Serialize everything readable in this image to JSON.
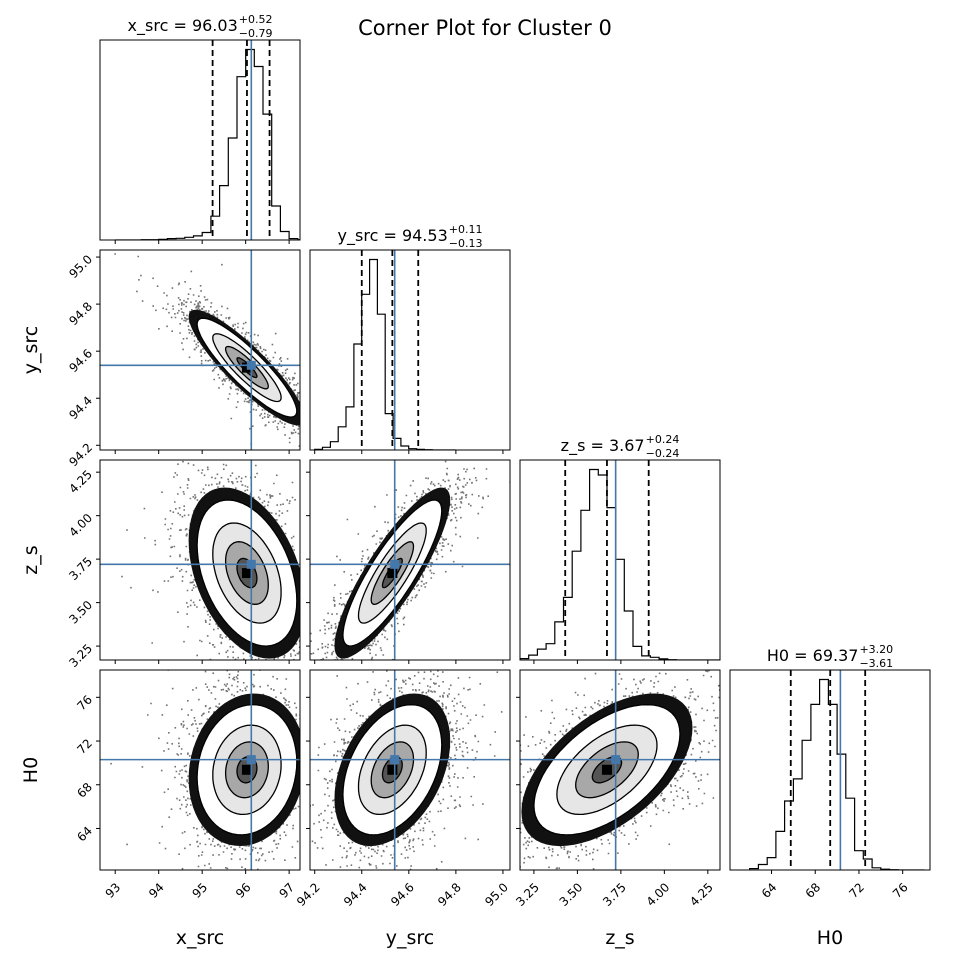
{
  "figure": {
    "title": "Corner Plot for Cluster 0"
  },
  "colors": {
    "truth": "#4477aa",
    "hist": "#000000",
    "background": "#ffffff"
  },
  "chart_data": {
    "type": "corner",
    "parameters": [
      {
        "name": "x_src",
        "label": "x_src",
        "range": [
          92.65,
          97.25
        ],
        "ticks": [
          93,
          94,
          95,
          96,
          97
        ],
        "tick_labels": [
          "93",
          "94",
          "95",
          "96",
          "97"
        ],
        "median": 96.03,
        "plus": "+0.52",
        "minus": "−0.79",
        "title_value": "96.03",
        "quantiles": [
          95.24,
          96.03,
          96.55
        ],
        "truth": 96.13,
        "hist": {
          "edges_start": 93.0,
          "bin_width": 0.2,
          "counts": [
            0,
            0,
            0,
            1,
            1,
            2,
            4,
            5,
            8,
            12,
            22,
            70,
            160,
            300,
            480,
            560,
            510,
            370,
            100,
            25,
            4,
            1,
            0
          ]
        }
      },
      {
        "name": "y_src",
        "label": "y_src",
        "range": [
          94.18,
          95.03
        ],
        "ticks": [
          94.2,
          94.4,
          94.6,
          94.8,
          95.0
        ],
        "tick_labels": [
          "94.2",
          "94.4",
          "94.6",
          "94.8",
          "95.0"
        ],
        "median": 94.53,
        "plus": "+0.11",
        "minus": "−0.13",
        "title_value": "94.53",
        "quantiles": [
          94.4,
          94.53,
          94.64
        ],
        "truth": 94.54,
        "hist": {
          "edges_start": 94.2,
          "bin_width": 0.0333,
          "counts": [
            2,
            8,
            25,
            70,
            130,
            320,
            470,
            575,
            410,
            110,
            35,
            12,
            4,
            2,
            1,
            0,
            0,
            0
          ]
        }
      },
      {
        "name": "z_s",
        "label": "z_s",
        "range": [
          3.17,
          4.32
        ],
        "ticks": [
          3.25,
          3.5,
          3.75,
          4.0,
          4.25
        ],
        "tick_labels": [
          "3.25",
          "3.50",
          "3.75",
          "4.00",
          "4.25"
        ],
        "median": 3.67,
        "plus": "+0.24",
        "minus": "−0.24",
        "title_value": "3.67",
        "quantiles": [
          3.43,
          3.67,
          3.91
        ],
        "truth": 3.72,
        "hist": {
          "edges_start": 3.17,
          "bin_width": 0.05,
          "counts": [
            5,
            18,
            40,
            60,
            140,
            230,
            400,
            550,
            700,
            680,
            560,
            370,
            180,
            50,
            15,
            10,
            4,
            1,
            0,
            0,
            0,
            0,
            0
          ]
        }
      },
      {
        "name": "H0",
        "label": "H0",
        "range": [
          60.2,
          78.5
        ],
        "ticks": [
          64,
          68,
          72,
          76
        ],
        "tick_labels": [
          "64",
          "68",
          "72",
          "76"
        ],
        "median": 69.37,
        "plus": "+3.20",
        "minus": "−3.61",
        "title_value": "69.37",
        "quantiles": [
          65.76,
          69.37,
          72.57
        ],
        "truth": 70.3,
        "hist": {
          "edges_start": 62.0,
          "bin_width": 0.8,
          "counts": [
            5,
            20,
            45,
            140,
            250,
            330,
            470,
            600,
            690,
            600,
            420,
            260,
            70,
            40,
            8,
            3,
            1,
            0,
            0,
            0
          ]
        }
      }
    ],
    "pairs": [
      {
        "row": 1,
        "col": 0,
        "corr": -0.88
      },
      {
        "row": 2,
        "col": 0,
        "corr": -0.38
      },
      {
        "row": 2,
        "col": 1,
        "corr": 0.85
      },
      {
        "row": 3,
        "col": 0,
        "corr": 0.12
      },
      {
        "row": 3,
        "col": 1,
        "corr": 0.38
      },
      {
        "row": 3,
        "col": 2,
        "corr": 0.55
      }
    ]
  }
}
